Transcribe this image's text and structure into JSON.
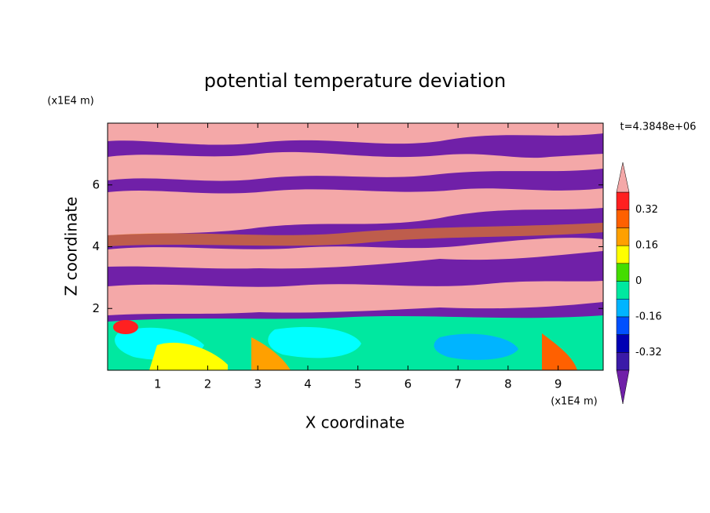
{
  "chart_data": {
    "type": "contour",
    "title": "potential temperature deviation",
    "x_label": "X coordinate",
    "y_label": "Z coordinate",
    "x_unit": "(x1E4 m)",
    "y_unit": "(x1E4 m)",
    "time_label": "t=4.3848e+06",
    "xlim": [
      0,
      9.9
    ],
    "ylim": [
      0,
      8
    ],
    "xticks": [
      1,
      2,
      3,
      4,
      5,
      6,
      7,
      8,
      9
    ],
    "yticks": [
      2,
      4,
      6
    ],
    "colorbar": {
      "levels": [
        -0.4,
        -0.32,
        -0.24,
        -0.16,
        -0.08,
        0,
        0.08,
        0.16,
        0.24,
        0.32,
        0.4
      ],
      "colors": [
        "#3a1aa8",
        "#0000b4",
        "#0050ff",
        "#00b4ff",
        "#00e8a0",
        "#44dd00",
        "#ffff00",
        "#ffa000",
        "#ff6000",
        "#ff2020"
      ],
      "under_color": "#7020a8",
      "over_color": "#f4a8a8",
      "ticks": [
        -0.32,
        -0.16,
        0,
        0.16,
        0.32
      ]
    }
  }
}
